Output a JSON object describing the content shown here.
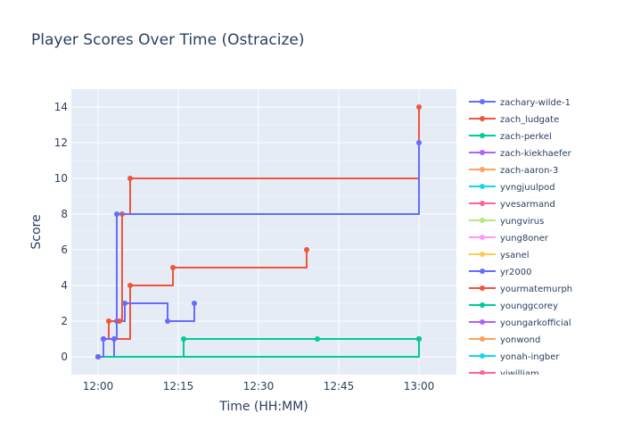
{
  "chart_data": {
    "type": "line",
    "line_shape": "step",
    "title": "Player Scores Over Time (Ostracize)",
    "xlabel": "Time (HH:MM)",
    "ylabel": "Score",
    "xlim": [
      "11:55",
      "13:07"
    ],
    "ylim": [
      -1,
      15
    ],
    "x_ticks": [
      "12:00",
      "12:15",
      "12:30",
      "12:45",
      "13:00"
    ],
    "y_ticks": [
      0,
      2,
      4,
      6,
      8,
      10,
      12,
      14
    ],
    "grid": true,
    "legend_position": "right",
    "colors": {
      "plot_background": "#E5ECF6",
      "grid": "#ffffff",
      "text": "#2a3f5f"
    },
    "series": [
      {
        "name": "zachary-wilde-1",
        "color": "#636EFA",
        "points": [
          [
            "12:00",
            0
          ],
          [
            "12:01",
            1
          ],
          [
            "12:03",
            1
          ],
          [
            "12:03.5",
            8
          ],
          [
            "13:00",
            12
          ]
        ]
      },
      {
        "name": "zach_ludgate",
        "color": "#EF553B",
        "points": [
          [
            "12:00",
            0
          ],
          [
            "12:01",
            1
          ],
          [
            "12:02",
            2
          ],
          [
            "12:04",
            2
          ],
          [
            "12:04.5",
            8
          ],
          [
            "12:06",
            10
          ],
          [
            "13:00",
            14
          ]
        ]
      },
      {
        "name": "zach-perkel",
        "color": "#00CC96",
        "points": [
          [
            "12:00",
            0
          ],
          [
            "13:00",
            1
          ]
        ]
      },
      {
        "name": "zach-kiekhaefer",
        "color": "#AB63FA",
        "points": [
          [
            "12:00",
            0
          ],
          [
            "13:00",
            1
          ]
        ]
      },
      {
        "name": "zach-aaron-3",
        "color": "#FFA15A",
        "points": [
          [
            "12:00",
            0
          ],
          [
            "13:00",
            1
          ]
        ]
      },
      {
        "name": "yvngjuulpod",
        "color": "#19D3F3",
        "points": [
          [
            "12:00",
            0
          ],
          [
            "13:00",
            1
          ]
        ]
      },
      {
        "name": "yvesarmand",
        "color": "#FF6692",
        "points": [
          [
            "12:00",
            0
          ],
          [
            "13:00",
            1
          ]
        ]
      },
      {
        "name": "yungvirus",
        "color": "#B6E880",
        "points": [
          [
            "12:00",
            0
          ],
          [
            "13:00",
            1
          ]
        ]
      },
      {
        "name": "yung8oner",
        "color": "#FF97FF",
        "points": [
          [
            "12:00",
            0
          ],
          [
            "13:00",
            1
          ]
        ]
      },
      {
        "name": "ysanel",
        "color": "#FECB52",
        "points": [
          [
            "12:00",
            0
          ],
          [
            "13:00",
            1
          ]
        ]
      },
      {
        "name": "yr2000",
        "color": "#636EFA",
        "points": [
          [
            "12:00",
            0
          ],
          [
            "12:03",
            1
          ],
          [
            "12:03.5",
            2
          ],
          [
            "12:05",
            3
          ],
          [
            "12:13",
            2
          ],
          [
            "12:18",
            3
          ]
        ]
      },
      {
        "name": "yourmatemurph",
        "color": "#EF553B",
        "points": [
          [
            "12:00",
            0
          ],
          [
            "12:01",
            1
          ],
          [
            "12:06",
            4
          ],
          [
            "12:14",
            5
          ],
          [
            "12:39",
            6
          ]
        ]
      },
      {
        "name": "younggcorey",
        "color": "#00CC96",
        "points": [
          [
            "12:00",
            0
          ],
          [
            "12:16",
            1
          ],
          [
            "12:41",
            1
          ],
          [
            "13:00",
            1
          ]
        ]
      },
      {
        "name": "youngarkofficial",
        "color": "#AB63FA",
        "points": [
          [
            "12:00",
            0
          ],
          [
            "13:00",
            1
          ]
        ]
      },
      {
        "name": "yonwond",
        "color": "#FFA15A",
        "points": [
          [
            "12:00",
            0
          ],
          [
            "13:00",
            1
          ]
        ]
      },
      {
        "name": "yonah-ingber",
        "color": "#19D3F3",
        "points": [
          [
            "12:00",
            0
          ],
          [
            "13:00",
            1
          ]
        ]
      },
      {
        "name": "yiwilliam",
        "color": "#FF6692",
        "points": [
          [
            "12:00",
            0
          ],
          [
            "13:00",
            1
          ]
        ]
      }
    ]
  }
}
